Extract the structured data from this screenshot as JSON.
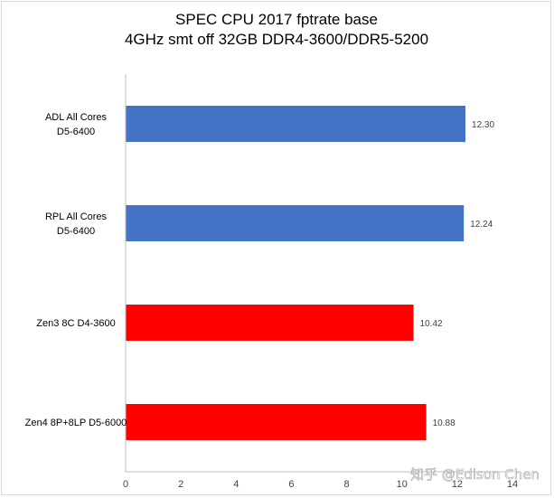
{
  "watermark": "知乎 @Edison Chen",
  "chart_data": {
    "type": "bar",
    "orientation": "horizontal",
    "title": [
      "SPEC CPU 2017 fptrate base",
      "4GHz smt off 32GB DDR4-3600/DDR5-5200"
    ],
    "xlabel": "",
    "ylabel": "",
    "xlim": [
      0,
      14
    ],
    "xticks": [
      0,
      2,
      4,
      6,
      8,
      10,
      12,
      14
    ],
    "grid": false,
    "legend": "none",
    "categories": [
      [
        "ADL All Cores",
        "D5-6400"
      ],
      [
        "RPL All Cores",
        "D5-6400"
      ],
      [
        "Zen3 8C D4-3600"
      ],
      [
        "Zen4 8P+8LP D5-6000"
      ]
    ],
    "values": [
      12.3,
      12.24,
      10.42,
      10.88
    ],
    "value_labels": [
      "12.30",
      "12.24",
      "10.42",
      "10.88"
    ],
    "colors": [
      "#4472c4",
      "#4472c4",
      "#ff0000",
      "#ff0000"
    ]
  }
}
